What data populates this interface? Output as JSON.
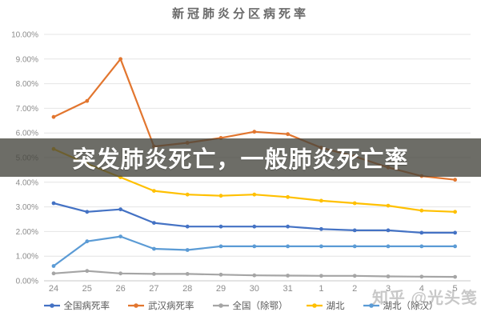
{
  "overlay": {
    "headline": "突发肺炎死亡，一般肺炎死亡率"
  },
  "watermark": {
    "text": "知乎 @光头笺"
  },
  "chart_data": {
    "type": "line",
    "title": "新冠肺炎分区病死率",
    "categories": [
      "24",
      "25",
      "26",
      "27",
      "28",
      "29",
      "30",
      "31",
      "1",
      "2",
      "3",
      "4",
      "5"
    ],
    "y_ticks": [
      "0.00%",
      "1.00%",
      "2.00%",
      "3.00%",
      "4.00%",
      "5.00%",
      "6.00%",
      "7.00%",
      "8.00%",
      "9.00%",
      "10.00%"
    ],
    "xlabel": "",
    "ylabel": "",
    "ylim": [
      0,
      10
    ],
    "grid": true,
    "legend_position": "bottom",
    "series": [
      {
        "name": "全国病死率",
        "color": "#4472C4",
        "values": [
          3.15,
          2.8,
          2.9,
          2.35,
          2.2,
          2.2,
          2.2,
          2.2,
          2.1,
          2.05,
          2.05,
          1.95,
          1.95
        ]
      },
      {
        "name": "武汉病死率",
        "color": "#E2762F",
        "values": [
          6.65,
          7.3,
          9.0,
          5.45,
          5.6,
          5.8,
          6.05,
          5.95,
          5.4,
          5.05,
          4.6,
          4.25,
          4.1
        ]
      },
      {
        "name": "全国（除鄂）",
        "color": "#A5A5A5",
        "values": [
          0.3,
          0.4,
          0.3,
          0.28,
          0.28,
          0.25,
          0.22,
          0.21,
          0.2,
          0.2,
          0.18,
          0.17,
          0.16
        ]
      },
      {
        "name": "湖北",
        "color": "#FFC000",
        "values": [
          5.35,
          4.75,
          4.2,
          3.65,
          3.5,
          3.45,
          3.5,
          3.4,
          3.25,
          3.15,
          3.05,
          2.85,
          2.8
        ]
      },
      {
        "name": "湖北（除汉）",
        "color": "#5B9BD5",
        "values": [
          0.6,
          1.6,
          1.8,
          1.3,
          1.25,
          1.4,
          1.4,
          1.4,
          1.4,
          1.4,
          1.4,
          1.4,
          1.4
        ]
      }
    ]
  }
}
